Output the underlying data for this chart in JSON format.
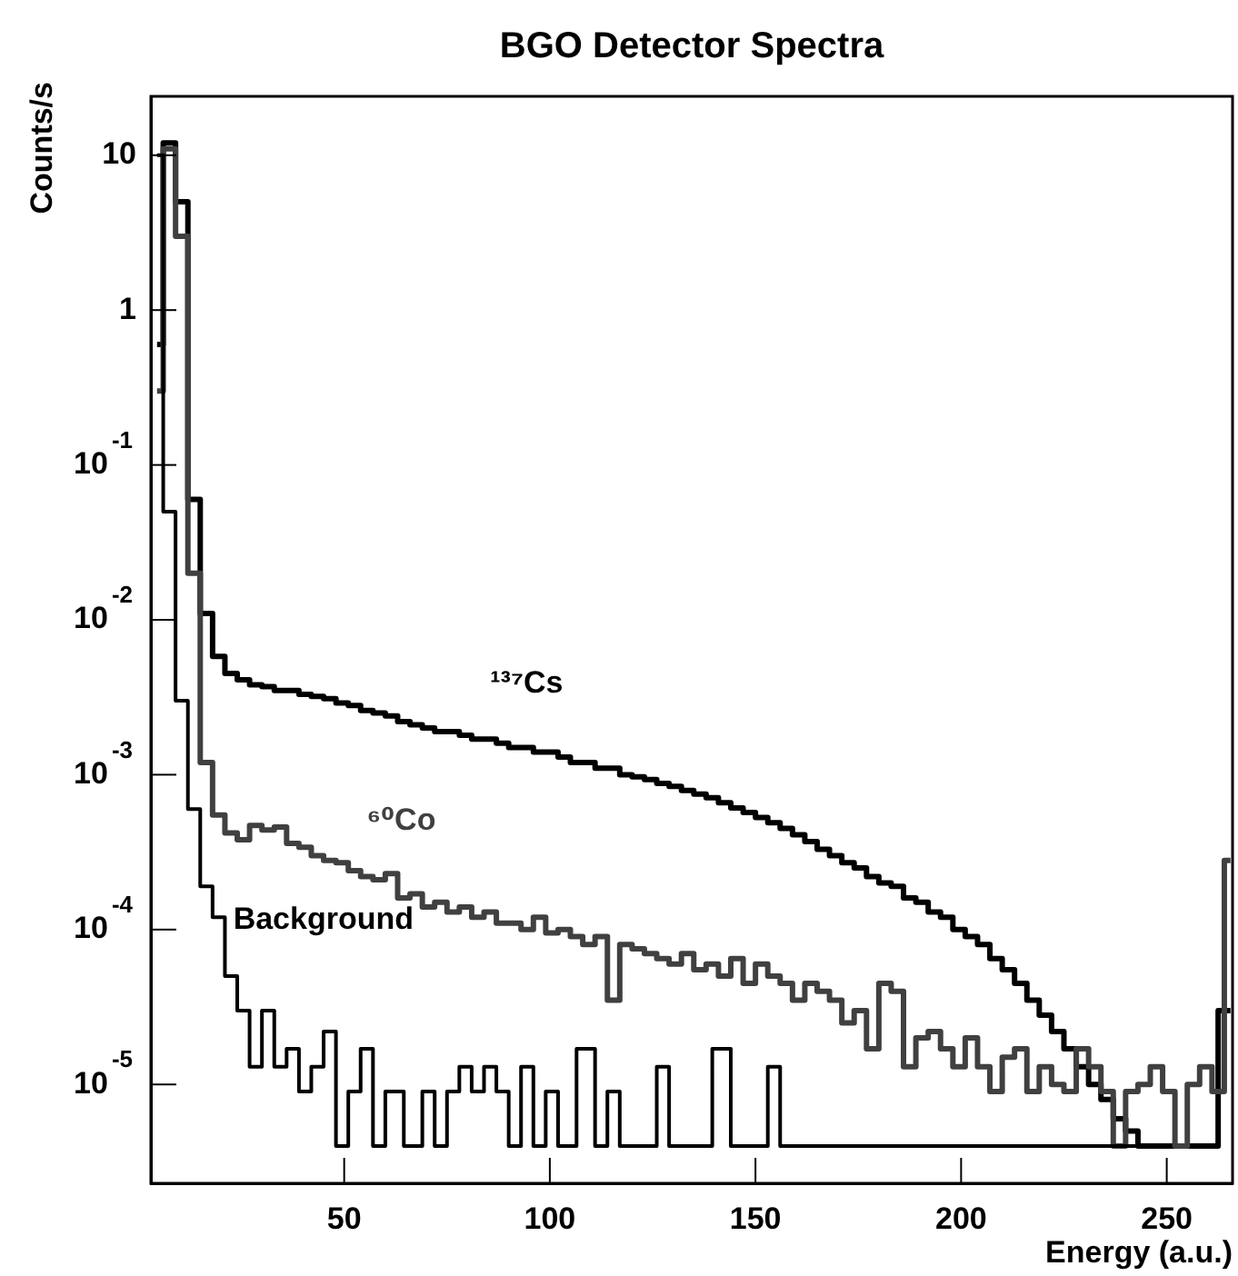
{
  "chart_data": {
    "type": "step",
    "title": "BGO Detector Spectra",
    "xlabel": "Energy (a.u.)",
    "ylabel": "Counts/s",
    "log": "y",
    "grid": false,
    "legend": false,
    "marker": "none",
    "xlim": [
      3,
      266
    ],
    "xticks": [
      50,
      100,
      150,
      200,
      250
    ],
    "ylim": [
      2.3e-06,
      24
    ],
    "yticks": [
      {
        "value": 10,
        "label": "10"
      },
      {
        "value": 1,
        "label": "1"
      },
      {
        "value": 0.1,
        "label": "10$^{-1}$"
      },
      {
        "value": 0.01,
        "label": "10$^{-2}$"
      },
      {
        "value": 0.001,
        "label": "10$^{-3}$"
      },
      {
        "value": 0.0001,
        "label": "10$^{-4}$"
      },
      {
        "value": 1e-05,
        "label": "10$^{-5}$"
      }
    ],
    "x": [
      4.5,
      7.5,
      10.5,
      13.5,
      16.5,
      19.5,
      22.5,
      25.5,
      28.5,
      31.5,
      34.5,
      37.5,
      40.5,
      43.5,
      46.5,
      49.5,
      52.5,
      55.5,
      58.5,
      61.5,
      64.5,
      67.5,
      70.5,
      73.5,
      76.5,
      79.5,
      82.5,
      85.5,
      88.5,
      91.5,
      94.5,
      97.5,
      100.5,
      103.5,
      106.5,
      109.5,
      112.5,
      115.5,
      118.5,
      121.5,
      124.5,
      127.5,
      130.5,
      133.5,
      136.5,
      139.5,
      142.5,
      145.5,
      148.5,
      151.5,
      154.5,
      157.5,
      160.5,
      163.5,
      166.5,
      169.5,
      172.5,
      175.5,
      178.5,
      181.5,
      184.5,
      187.5,
      190.5,
      193.5,
      196.5,
      199.5,
      202.5,
      205.5,
      208.5,
      211.5,
      214.5,
      217.5,
      220.5,
      223.5,
      226.5,
      229.5,
      232.5,
      235.5,
      238.5,
      241.5,
      244.5,
      247.5,
      250.5,
      253.5,
      256.5,
      259.5,
      262.5,
      265.5
    ],
    "series": [
      {
        "name": "¹³⁷Cs",
        "color": "#000000",
        "values": [
          0.6,
          12,
          5,
          0.06,
          0.011,
          0.0058,
          0.0045,
          0.0041,
          0.0038,
          0.0037,
          0.0035,
          0.0035,
          0.0033,
          0.0032,
          0.0031,
          0.0029,
          0.0028,
          0.0026,
          0.0025,
          0.0024,
          0.0022,
          0.0021,
          0.002,
          0.0019,
          0.0019,
          0.0018,
          0.0017,
          0.0017,
          0.0016,
          0.0015,
          0.0015,
          0.0014,
          0.0014,
          0.0013,
          0.0012,
          0.0012,
          0.0011,
          0.0011,
          0.001,
          0.00097,
          0.00093,
          0.00088,
          0.00084,
          0.00079,
          0.00075,
          0.00071,
          0.00066,
          0.00061,
          0.00057,
          0.00053,
          0.00049,
          0.00045,
          0.00041,
          0.00037,
          0.00033,
          0.0003,
          0.00027,
          0.00025,
          0.00022,
          0.0002,
          0.00019,
          0.00016,
          0.00015,
          0.00013,
          0.00012,
          0.0001,
          9e-05,
          8e-05,
          6.5e-05,
          5.5e-05,
          4.5e-05,
          3.5e-05,
          2.8e-05,
          2.2e-05,
          1.7e-05,
          1.3e-05,
          1e-05,
          8e-06,
          6e-06,
          5e-06,
          4e-06,
          null,
          4e-06,
          null,
          null,
          4e-06,
          null,
          3e-05
        ]
      },
      {
        "name": "⁶⁰Co",
        "color": "#404040",
        "values": [
          0.3,
          11,
          3,
          0.02,
          0.0012,
          0.00055,
          0.00042,
          0.00038,
          0.00047,
          0.00044,
          0.00046,
          0.00036,
          0.00034,
          0.0003,
          0.00028,
          0.00027,
          0.00024,
          0.00022,
          0.00021,
          0.00023,
          0.00016,
          0.00017,
          0.00014,
          0.00015,
          0.00013,
          0.00014,
          0.00012,
          0.00013,
          0.00011,
          0.00011,
          0.0001,
          0.00012,
          9.5e-05,
          0.0001,
          9e-05,
          8e-05,
          9e-05,
          3.5e-05,
          8e-05,
          7.5e-05,
          7e-05,
          6.5e-05,
          6e-05,
          7e-05,
          5.5e-05,
          6e-05,
          5e-05,
          6.5e-05,
          4.5e-05,
          6e-05,
          5e-05,
          4.5e-05,
          3.5e-05,
          4.5e-05,
          4e-05,
          3.5e-05,
          2.5e-05,
          3e-05,
          1.7e-05,
          4.5e-05,
          4e-05,
          1.3e-05,
          2e-05,
          2.2e-05,
          1.7e-05,
          1.3e-05,
          2e-05,
          1.3e-05,
          9e-06,
          1.5e-05,
          1.7e-05,
          9e-06,
          1.3e-05,
          1e-05,
          9e-06,
          1.7e-05,
          1.3e-05,
          9e-06,
          4e-06,
          9e-06,
          1e-05,
          1.3e-05,
          9e-06,
          4e-06,
          1e-05,
          1.3e-05,
          9e-06,
          0.00028
        ]
      },
      {
        "name": "Background",
        "color": "#000000",
        "values": [
          10,
          0.05,
          0.003,
          0.0006,
          0.00019,
          0.00012,
          5e-05,
          3e-05,
          1.3e-05,
          3e-05,
          1.3e-05,
          1.7e-05,
          9e-06,
          1.3e-05,
          2.2e-05,
          4e-06,
          9e-06,
          1.7e-05,
          4e-06,
          9e-06,
          null,
          4e-06,
          9e-06,
          4e-06,
          9e-06,
          1.3e-05,
          9e-06,
          1.3e-05,
          9e-06,
          4e-06,
          1.3e-05,
          4e-06,
          9e-06,
          4e-06,
          null,
          1.7e-05,
          4e-06,
          9e-06,
          4e-06,
          null,
          4e-06,
          1.3e-05,
          4e-06,
          null,
          4e-06,
          null,
          1.7e-05,
          4e-06,
          null,
          4e-06,
          1.3e-05,
          4e-06,
          null,
          4e-06,
          4e-06,
          null,
          4e-06,
          4e-06,
          null,
          4e-06,
          4e-06,
          null,
          null,
          4e-06,
          null,
          4e-06,
          null,
          4e-06,
          null,
          4e-06,
          null,
          null,
          4e-06,
          null,
          null,
          null,
          4e-06,
          null,
          null,
          null,
          4e-06,
          null,
          null,
          null,
          null,
          null,
          null,
          null
        ]
      }
    ]
  }
}
